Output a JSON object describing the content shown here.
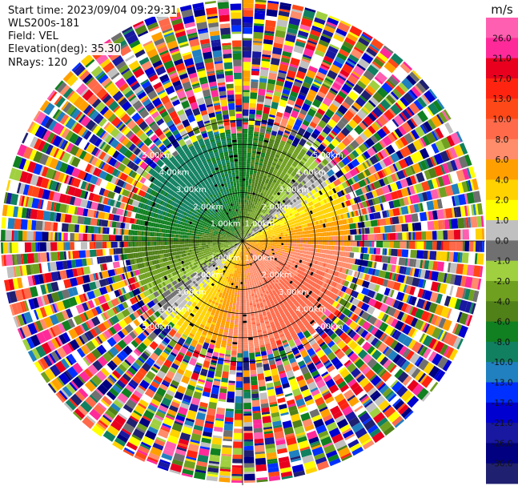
{
  "info": {
    "start_time": "Start time: 2023/09/04 09:29:31",
    "instrument": "WLS200s-181",
    "field": "Field: VEL",
    "elevation": "Elevation(deg): 35.30",
    "nrays": "NRays: 120"
  },
  "chart_data": {
    "type": "heatmap",
    "projection": "polar-ppi",
    "field": "VEL",
    "units": "m/s",
    "n_rays": 120,
    "elevation_deg": 35.3,
    "max_range_km": 10,
    "clean_signal_range_km": 4.6,
    "range_rings_km": [
      1,
      2,
      3,
      4,
      5
    ],
    "range_labels": [
      "1.00km",
      "2.00km",
      "3.00km",
      "4.00km",
      "5.00km"
    ],
    "colorbar": {
      "unit_label": "m/s",
      "ticks": [
        "26.0",
        "21.0",
        "17.0",
        "13.0",
        "10.0",
        "8.0",
        "6.0",
        "4.0",
        "2.0",
        "1.0",
        "0.0",
        "-1.0",
        "-2.0",
        "-4.0",
        "-6.0",
        "-8.0",
        "-10.0",
        "-13.0",
        "-17.0",
        "-21.0",
        "-26.0",
        "-30.0"
      ],
      "colors": [
        "#ff5fb0",
        "#ff2a9a",
        "#e8001e",
        "#ff2410",
        "#ff4818",
        "#ff6a4a",
        "#ff8c6a",
        "#ffa000",
        "#ffd200",
        "#ffff00",
        "#c0c0c0",
        "#707070",
        "#a0d040",
        "#70a020",
        "#508018",
        "#108020",
        "#108060",
        "#2080c0",
        "#0030ff",
        "#0000d0",
        "#1818a0",
        "#000080",
        "#202070"
      ]
    },
    "velocity_field": {
      "approaching_center_deg": 290,
      "receding_center_deg": 140,
      "radial_velocity_max_ms": 9
    }
  }
}
